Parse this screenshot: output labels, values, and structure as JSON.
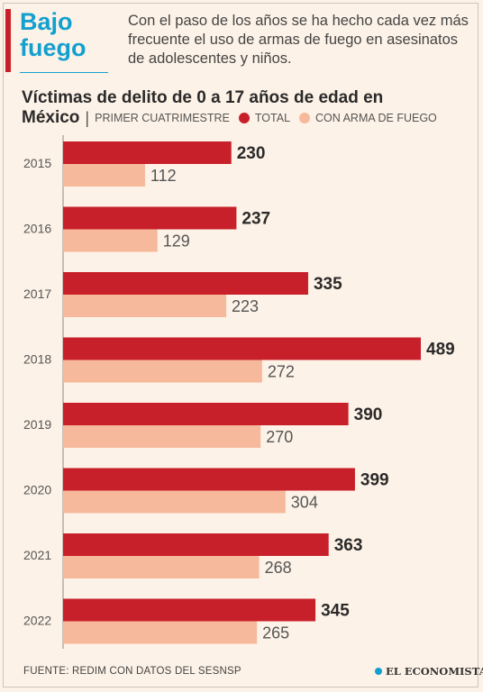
{
  "header": {
    "title_line1": "Bajo",
    "title_line2": "fuego",
    "intro": "Con el paso de los años se ha hecho cada vez más frecuente el uso de armas de fuego en asesinatos de adolescentes y niños."
  },
  "chart_data": {
    "type": "bar",
    "orientation": "horizontal",
    "title": "Víctimas de delito de 0 a 17 años de edad en",
    "title_line2": "México",
    "subtitle": "PRIMER CUATRIMESTRE",
    "categories": [
      "2015",
      "2016",
      "2017",
      "2018",
      "2019",
      "2020",
      "2021",
      "2022"
    ],
    "series": [
      {
        "name": "TOTAL",
        "color": "#c8202a",
        "values": [
          230,
          237,
          335,
          489,
          390,
          399,
          363,
          345
        ]
      },
      {
        "name": "CON ARMA DE FUEGO",
        "color": "#f6b99b",
        "values": [
          112,
          129,
          223,
          272,
          270,
          304,
          268,
          265
        ]
      }
    ],
    "xlim": [
      0,
      489
    ],
    "grid": false,
    "legend_position": "top"
  },
  "footer": {
    "source": "FUENTE: REDIM CON DATOS DEL SESNSP",
    "logo": "EL ECONOMISTA"
  }
}
